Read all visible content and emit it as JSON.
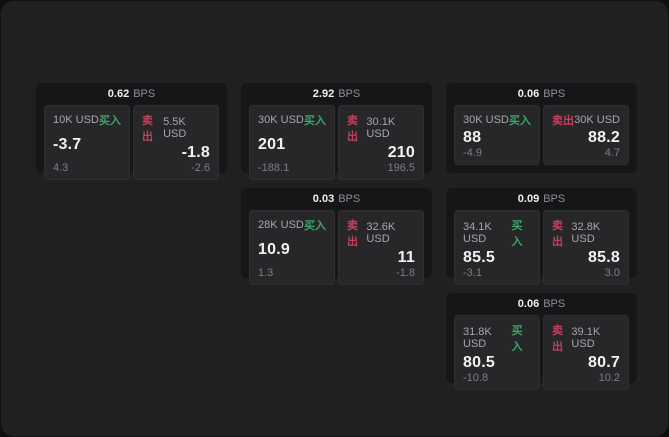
{
  "colors": {
    "buy_accent": "#3aa566",
    "sell_accent": "#c2405b",
    "panel_bg": "#202022",
    "card_bg": "#161618",
    "box_bg": "#27272a",
    "value_text": "#f2f2f4",
    "muted_text": "#8e8e93"
  },
  "labels": {
    "bps_unit": "BPS",
    "buy": "买入",
    "sell": "卖出"
  },
  "cards": [
    {
      "row": 1,
      "col": 1,
      "bps": "0.62",
      "buy": {
        "amount": "10K USD",
        "label": "买入",
        "value": "-3.7",
        "sub": "4.3"
      },
      "sell": {
        "label": "卖出",
        "amount": "5.5K USD",
        "value": "-1.8",
        "sub": "-2.6"
      }
    },
    {
      "row": 1,
      "col": 2,
      "bps": "2.92",
      "buy": {
        "amount": "30K USD",
        "label": "买入",
        "value": "201",
        "sub": "-188.1"
      },
      "sell": {
        "label": "卖出",
        "amount": "30.1K USD",
        "value": "210",
        "sub": "196.5"
      }
    },
    {
      "row": 1,
      "col": 3,
      "bps": "0.06",
      "buy": {
        "amount": "30K USD",
        "label": "买入",
        "value": "88",
        "sub": "-4.9"
      },
      "sell": {
        "label": "卖出",
        "amount": "30K USD",
        "value": "88.2",
        "sub": "4.7"
      }
    },
    {
      "row": 2,
      "col": 2,
      "bps": "0.03",
      "buy": {
        "amount": "28K USD",
        "label": "买入",
        "value": "10.9",
        "sub": "1.3"
      },
      "sell": {
        "label": "卖出",
        "amount": "32.6K USD",
        "value": "11",
        "sub": "-1.8"
      }
    },
    {
      "row": 2,
      "col": 3,
      "bps": "0.09",
      "buy": {
        "amount": "34.1K USD",
        "label": "买入",
        "value": "85.5",
        "sub": "-3.1"
      },
      "sell": {
        "label": "卖出",
        "amount": "32.8K USD",
        "value": "85.8",
        "sub": "3.0"
      }
    },
    {
      "row": 3,
      "col": 3,
      "bps": "0.06",
      "buy": {
        "amount": "31.8K USD",
        "label": "买入",
        "value": "80.5",
        "sub": "-10.8"
      },
      "sell": {
        "label": "卖出",
        "amount": "39.1K USD",
        "value": "80.7",
        "sub": "10.2"
      }
    }
  ]
}
